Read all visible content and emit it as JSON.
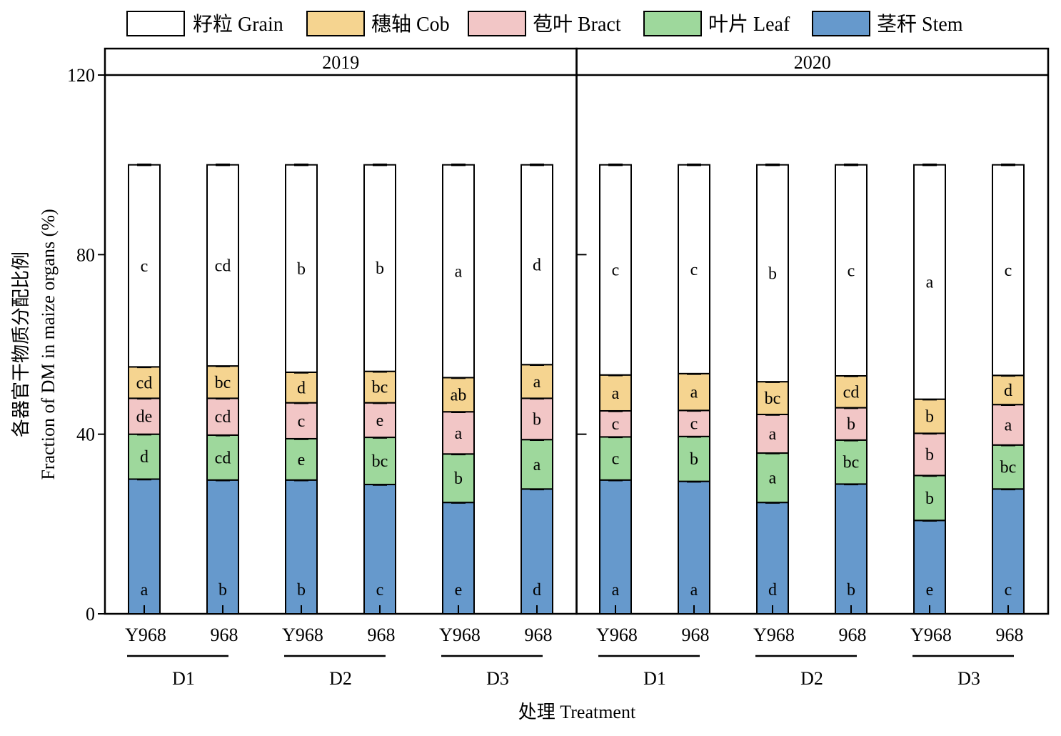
{
  "chart_data": {
    "type": "stacked-bar",
    "ylabel_cn": "各器官干物质分配比例",
    "ylabel": "Fraction of DM in maize organs (%)",
    "xlabel": "处理 Treatment",
    "ylim": [
      0,
      120
    ],
    "yticks": [
      "0",
      "40",
      "80",
      "120"
    ],
    "colors": {
      "Grain": "#ffffff",
      "Cob": "#f5d490",
      "Bract": "#f2c6c6",
      "Leaf": "#9ed89c",
      "Stem": "#6699cc"
    },
    "legend": [
      {
        "key": "Grain",
        "label": "籽粒 Grain"
      },
      {
        "key": "Cob",
        "label": "穗轴 Cob"
      },
      {
        "key": "Bract",
        "label": "苞叶 Bract"
      },
      {
        "key": "Leaf",
        "label": "叶片 Leaf"
      },
      {
        "key": "Stem",
        "label": "茎秆 Stem"
      }
    ],
    "panels": [
      {
        "title": "2019",
        "groups": [
          "D1",
          "D2",
          "D3"
        ],
        "bars": [
          {
            "cultivar": "Y968",
            "group": "D1",
            "Stem": 30.0,
            "Leaf": 10.0,
            "Bract": 8.0,
            "Cob": 7.0,
            "Grain": 45.0,
            "letters": {
              "Stem": "a",
              "Leaf": "d",
              "Bract": "de",
              "Cob": "cd",
              "Grain": "c"
            }
          },
          {
            "cultivar": "968",
            "group": "D1",
            "Stem": 29.8,
            "Leaf": 10.0,
            "Bract": 8.2,
            "Cob": 7.2,
            "Grain": 44.8,
            "letters": {
              "Stem": "b",
              "Leaf": "cd",
              "Bract": "cd",
              "Cob": "bc",
              "Grain": "cd"
            }
          },
          {
            "cultivar": "Y968",
            "group": "D2",
            "Stem": 29.8,
            "Leaf": 9.2,
            "Bract": 8.0,
            "Cob": 6.8,
            "Grain": 46.2,
            "letters": {
              "Stem": "b",
              "Leaf": "e",
              "Bract": "c",
              "Cob": "d",
              "Grain": "b"
            }
          },
          {
            "cultivar": "968",
            "group": "D2",
            "Stem": 28.8,
            "Leaf": 10.5,
            "Bract": 7.7,
            "Cob": 7.0,
            "Grain": 46.0,
            "letters": {
              "Stem": "c",
              "Leaf": "bc",
              "Bract": "e",
              "Cob": "bc",
              "Grain": "b"
            }
          },
          {
            "cultivar": "Y968",
            "group": "D3",
            "Stem": 24.8,
            "Leaf": 10.8,
            "Bract": 9.4,
            "Cob": 7.6,
            "Grain": 47.4,
            "letters": {
              "Stem": "e",
              "Leaf": "b",
              "Bract": "a",
              "Cob": "ab",
              "Grain": "a"
            }
          },
          {
            "cultivar": "968",
            "group": "D3",
            "Stem": 27.8,
            "Leaf": 11.0,
            "Bract": 9.2,
            "Cob": 7.5,
            "Grain": 44.5,
            "letters": {
              "Stem": "d",
              "Leaf": "a",
              "Bract": "b",
              "Cob": "a",
              "Grain": "d"
            }
          }
        ]
      },
      {
        "title": "2020",
        "groups": [
          "D1",
          "D2",
          "D3"
        ],
        "bars": [
          {
            "cultivar": "Y968",
            "group": "D1",
            "Stem": 29.8,
            "Leaf": 9.6,
            "Bract": 5.8,
            "Cob": 8.0,
            "Grain": 46.8,
            "letters": {
              "Stem": "a",
              "Leaf": "c",
              "Bract": "c",
              "Cob": "a",
              "Grain": "c"
            }
          },
          {
            "cultivar": "968",
            "group": "D1",
            "Stem": 29.5,
            "Leaf": 10.0,
            "Bract": 5.8,
            "Cob": 8.2,
            "Grain": 46.5,
            "letters": {
              "Stem": "a",
              "Leaf": "b",
              "Bract": "c",
              "Cob": "a",
              "Grain": "c"
            }
          },
          {
            "cultivar": "Y968",
            "group": "D2",
            "Stem": 24.8,
            "Leaf": 11.0,
            "Bract": 8.6,
            "Cob": 7.3,
            "Grain": 48.3,
            "letters": {
              "Stem": "d",
              "Leaf": "a",
              "Bract": "a",
              "Cob": "bc",
              "Grain": "b"
            }
          },
          {
            "cultivar": "968",
            "group": "D2",
            "Stem": 28.9,
            "Leaf": 9.8,
            "Bract": 7.2,
            "Cob": 7.1,
            "Grain": 47.0,
            "letters": {
              "Stem": "b",
              "Leaf": "bc",
              "Bract": "b",
              "Cob": "cd",
              "Grain": "c"
            }
          },
          {
            "cultivar": "Y968",
            "group": "D3",
            "Stem": 20.8,
            "Leaf": 10.0,
            "Bract": 9.4,
            "Cob": 7.6,
            "Grain": 52.2,
            "letters": {
              "Stem": "e",
              "Leaf": "b",
              "Bract": "b",
              "Cob": "b",
              "Grain": "a"
            }
          },
          {
            "cultivar": "968",
            "group": "D3",
            "Stem": 27.8,
            "Leaf": 9.8,
            "Bract": 9.0,
            "Cob": 6.5,
            "Grain": 46.9,
            "letters": {
              "Stem": "c",
              "Leaf": "bc",
              "Bract": "a",
              "Cob": "d",
              "Grain": "c"
            }
          }
        ]
      }
    ]
  }
}
